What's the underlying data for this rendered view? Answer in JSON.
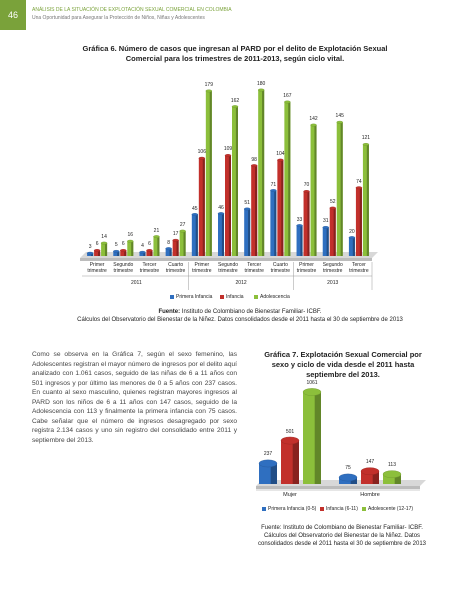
{
  "header": {
    "page_number": "46",
    "title": "ANÁLISIS DE LA SITUACIÓN DE EXPLOTACIÓN SEXUAL COMERCIAL EN COLOMBIA",
    "subtitle": "Una Oportunidad para Asegurar la Protección de Niños, Niñas y Adolescentes"
  },
  "chart_data": [
    {
      "type": "bar",
      "title": "Gráfica 6. Número de casos que ingresan al PARD por el delito de Explotación Sexual Comercial para los trimestres de 2011-2013, según ciclo vital.",
      "categories": [
        "Primer trimestre",
        "Segundo trimestre",
        "Tercer trimestre",
        "Cuarto trimestre",
        "Primer trimestre",
        "Segundo trimestre",
        "Tercer trimestre",
        "Cuarto trimestre",
        "Primer trimestre",
        "Segundo trimestre",
        "Tercer trimestre"
      ],
      "groups": [
        "2011",
        "2012",
        "2013"
      ],
      "series": [
        {
          "name": "Primera Infancia",
          "color": "#2f6fc0",
          "values": [
            3,
            5,
            4,
            8,
            45,
            46,
            51,
            71,
            33,
            31,
            20
          ]
        },
        {
          "name": "Infancia",
          "color": "#c2302b",
          "values": [
            6,
            6,
            6,
            17,
            106,
            109,
            98,
            104,
            70,
            52,
            74
          ]
        },
        {
          "name": "Adolescencia",
          "color": "#8cbf3b",
          "values": [
            14,
            16,
            21,
            27,
            179,
            162,
            180,
            167,
            142,
            145,
            121
          ]
        }
      ],
      "source_label": "Fuente:",
      "source": "Instituto de Colombiano de Bienestar Familiar- ICBF.",
      "source_note": "Cálculos del Observatorio del Bienestar de la Niñez. Datos consolidados desde el 2011 hasta el 30 de septiembre de 2013"
    },
    {
      "type": "bar",
      "title": "Gráfica 7. Explotación Sexual Comercial por sexo y ciclo de vida desde el 2011 hasta septiembre del 2013.",
      "categories": [
        "Mujer",
        "Hombre"
      ],
      "series": [
        {
          "name": "Primera Infancia (0-5)",
          "color": "#2f6fc0",
          "values": [
            237,
            75
          ]
        },
        {
          "name": "Infancia (6-11)",
          "color": "#c2302b",
          "values": [
            501,
            147
          ]
        },
        {
          "name": "Adolescente (12-17)",
          "color": "#8cbf3b",
          "values": [
            1061,
            113
          ]
        }
      ],
      "source": "Fuente: Instituto de Colombiano de Bienestar Familiar- ICBF. Cálculos del Observatorio del Bienestar de la Niñez. Datos consolidados desde el 2011 hasta el 30 de septiembre de 2013"
    }
  ],
  "paragraph": "Como se observa en la Gráfica 7, según el sexo femenino, las Adolescentes registran el mayor número de ingresos por el delito aquí analizado con 1.061 casos, seguido de las niñas de 6 a 11 años con 501 ingresos y por último las menores de 0 a 5 años con 237 casos. En cuanto al sexo masculino, quienes registran mayores ingresos al PARD son los niños de 6 a 11 años con 147 casos, seguido de la Adolescencia con 113 y finalmente la primera infancia con 75 casos. Cabe señalar que el número de ingresos desagregado por sexo registra 2.134 casos y uno sin registro del consolidado entre 2011 y septiembre del 2013."
}
